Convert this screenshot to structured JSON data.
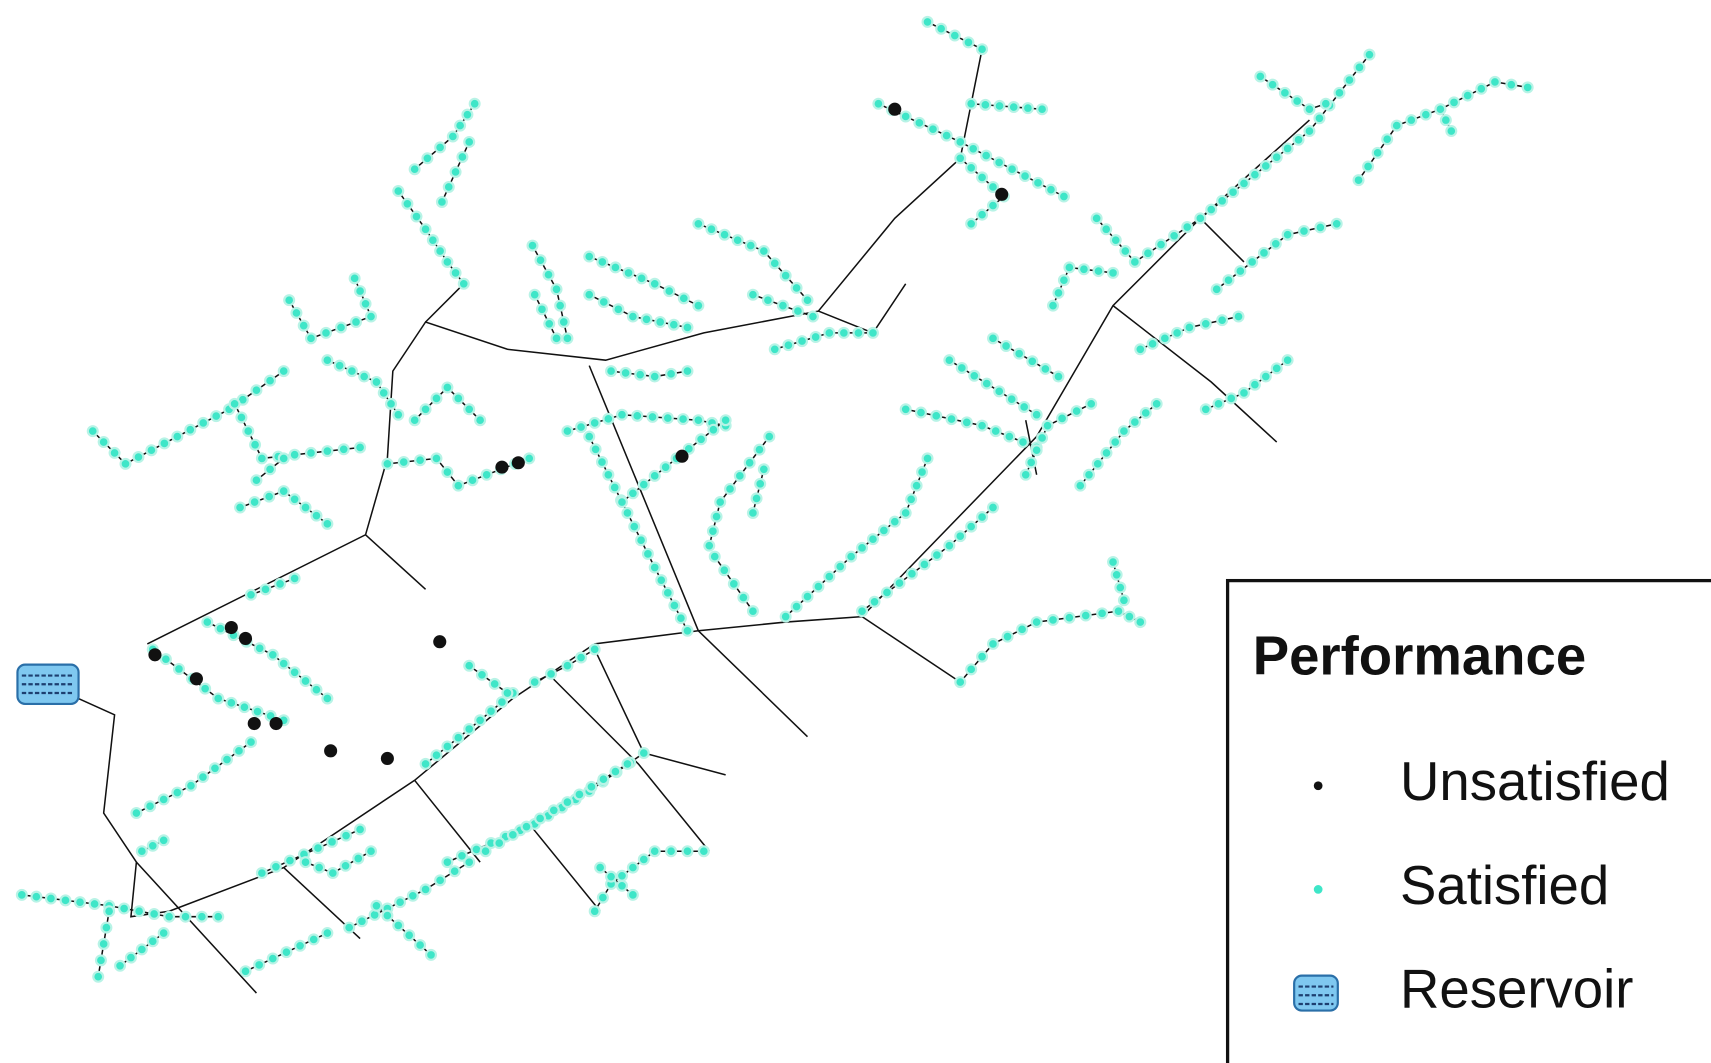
{
  "legend": {
    "title": "Performance",
    "items": [
      "Unsatisfied",
      "Satisfied",
      "Reservoir"
    ]
  }
}
